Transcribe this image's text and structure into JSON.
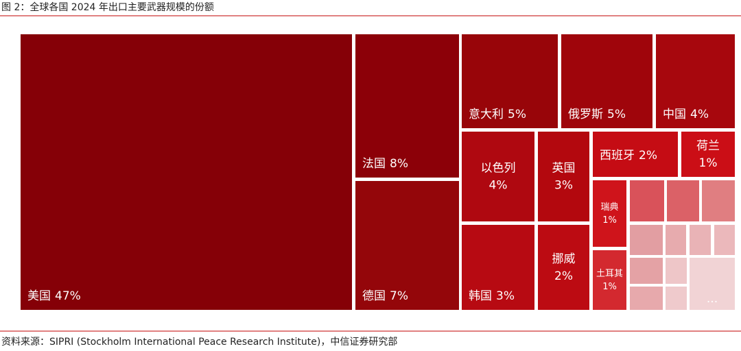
{
  "chart_data": {
    "type": "treemap",
    "title": "图 2：全球各国 2024 年出口主要武器规模的份额",
    "source": "资料来源：SIPRI (Stockholm International Peace Research Institute)，中信证券研究部",
    "categories": [
      "美国",
      "法国",
      "德国",
      "意大利",
      "俄罗斯",
      "中国",
      "以色列",
      "英国",
      "韩国",
      "挪威",
      "西班牙",
      "荷兰",
      "瑞典",
      "土耳其",
      null,
      null,
      null,
      null,
      null,
      null,
      null,
      null,
      null,
      null,
      null,
      "..."
    ],
    "values": [
      47,
      8,
      7,
      5,
      5,
      4,
      4,
      3,
      3,
      2,
      2,
      1,
      1,
      1,
      0.6,
      0.5,
      0.5,
      0.3,
      0.2,
      0.2,
      0.2,
      0.3,
      0.2,
      0.2,
      0.2,
      1
    ],
    "value_labels": [
      "47%",
      "8%",
      "7%",
      "5%",
      "5%",
      "4%",
      "4%",
      "3%",
      "3%",
      "2%",
      "2%",
      "1%",
      "1%",
      "1%",
      null,
      null,
      null,
      null,
      null,
      null,
      null,
      null,
      null,
      null,
      null,
      null
    ],
    "colors": [
      "#850007",
      "#8c0008",
      "#94060a",
      "#980509",
      "#9f050b",
      "#a7070d",
      "#af0810",
      "#b3080e",
      "#b70a12",
      "#bc0b12",
      "#c50c14",
      "#cb0e16",
      "#cf141b",
      "#d3292f",
      "#d9525a",
      "#db6167",
      "#e07e81",
      "#e29ea2",
      "#e7abae",
      "#e9b3b6",
      "#ebb8bb",
      "#e4a2a5",
      "#e7a9ac",
      "#eec6c8",
      "#efcacc",
      "#f1d3d5"
    ]
  }
}
